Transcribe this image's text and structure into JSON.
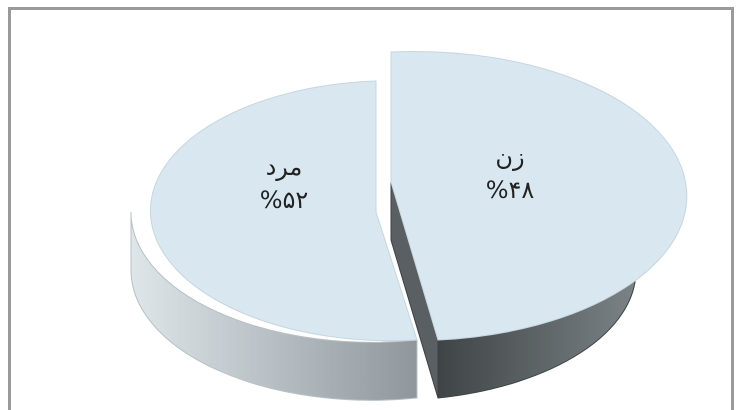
{
  "chart_data": {
    "type": "pie",
    "slices": [
      {
        "label": "زن",
        "value_text": "%۴۸",
        "value": 48
      },
      {
        "label": "مرد",
        "value_text": "%۵۲",
        "value": 52
      }
    ],
    "colors": {
      "top": "#d9e8f0",
      "side_light": "#c3ccd1",
      "side_dark": "#4f5457"
    }
  }
}
